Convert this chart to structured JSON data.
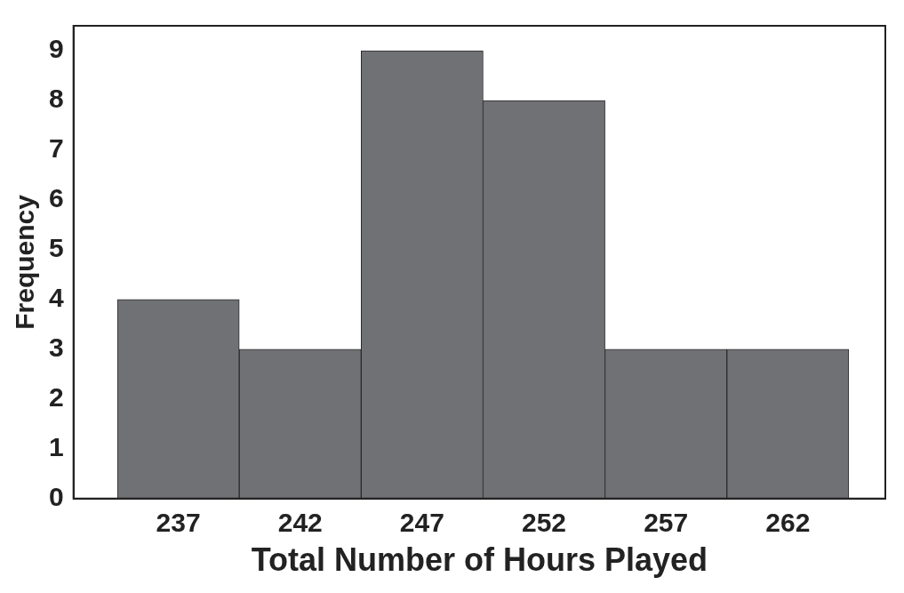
{
  "chart_data": {
    "type": "histogram",
    "xlabel": "Total Number of Hours Played",
    "ylabel": "Frequency",
    "bins": [
      234.5,
      239.5,
      244.5,
      249.5,
      254.5,
      259.5,
      264.5
    ],
    "values": [
      4,
      3,
      9,
      8,
      3,
      3
    ],
    "color": "#707174",
    "xlim": [
      232.7,
      266.0
    ],
    "xticks": [
      237,
      242,
      247,
      252,
      257,
      262
    ],
    "ylim": [
      0,
      9.5
    ],
    "yticks": [
      0,
      1,
      2,
      3,
      4,
      5,
      6,
      7,
      8,
      9
    ],
    "grid": false,
    "legend": false
  }
}
